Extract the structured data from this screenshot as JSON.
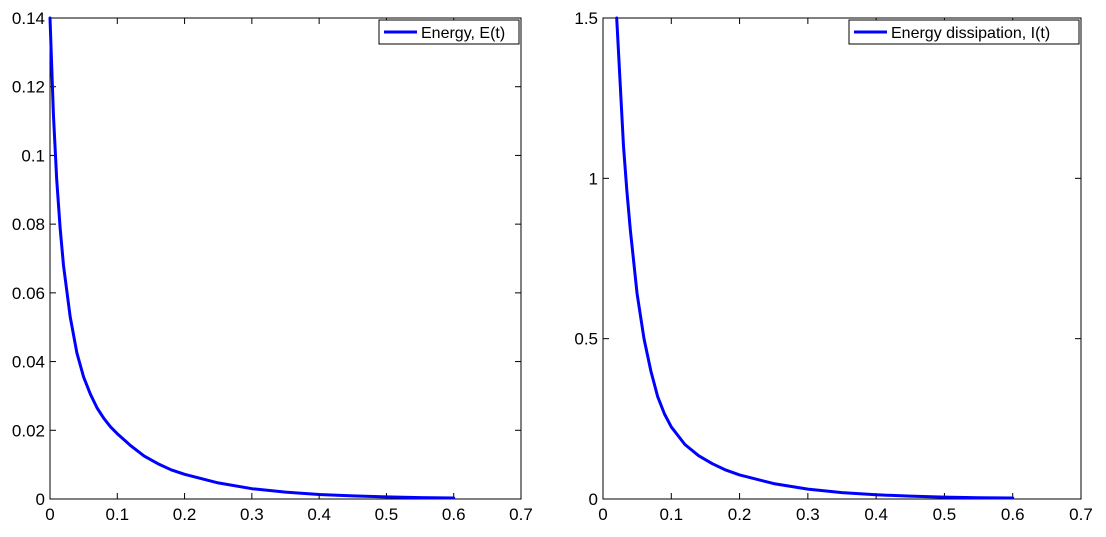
{
  "chart_data": [
    {
      "type": "line",
      "xlim": [
        0,
        0.7
      ],
      "ylim": [
        0,
        0.14
      ],
      "x_ticks": [
        "0",
        "0.1",
        "0.2",
        "0.3",
        "0.4",
        "0.5",
        "0.6",
        "0.7"
      ],
      "y_ticks": [
        "0",
        "0.02",
        "0.04",
        "0.06",
        "0.08",
        "0.1",
        "0.12",
        "0.14"
      ],
      "grid": false,
      "legend_position": "top-right",
      "series": [
        {
          "name": "Energy, E(t)",
          "color": "#0000ff",
          "x": [
            0,
            0.005,
            0.01,
            0.015,
            0.02,
            0.03,
            0.04,
            0.05,
            0.06,
            0.07,
            0.08,
            0.09,
            0.1,
            0.12,
            0.14,
            0.16,
            0.18,
            0.2,
            0.25,
            0.3,
            0.35,
            0.4,
            0.45,
            0.5,
            0.55,
            0.6
          ],
          "y": [
            0.14,
            0.112,
            0.093,
            0.079,
            0.068,
            0.053,
            0.0425,
            0.0355,
            0.0305,
            0.0265,
            0.0235,
            0.021,
            0.019,
            0.0155,
            0.0125,
            0.0103,
            0.0085,
            0.0072,
            0.0047,
            0.003,
            0.002,
            0.0013,
            0.0009,
            0.0006,
            0.0004,
            0.0003
          ]
        }
      ]
    },
    {
      "type": "line",
      "xlim": [
        0,
        0.7
      ],
      "ylim": [
        0,
        1.5
      ],
      "x_ticks": [
        "0",
        "0.1",
        "0.2",
        "0.3",
        "0.4",
        "0.5",
        "0.6",
        "0.7"
      ],
      "y_ticks": [
        "0",
        "0.5",
        "1",
        "1.5"
      ],
      "grid": false,
      "legend_position": "top-right",
      "series": [
        {
          "name": "Energy dissipation, I(t)",
          "color": "#0000ff",
          "x": [
            0.02,
            0.025,
            0.03,
            0.035,
            0.04,
            0.05,
            0.06,
            0.07,
            0.08,
            0.09,
            0.1,
            0.12,
            0.14,
            0.16,
            0.18,
            0.2,
            0.25,
            0.3,
            0.35,
            0.4,
            0.45,
            0.5,
            0.55,
            0.6
          ],
          "y": [
            1.5,
            1.3,
            1.1,
            0.96,
            0.84,
            0.64,
            0.5,
            0.4,
            0.32,
            0.265,
            0.225,
            0.17,
            0.135,
            0.11,
            0.09,
            0.075,
            0.048,
            0.031,
            0.02,
            0.013,
            0.009,
            0.006,
            0.004,
            0.003
          ]
        }
      ]
    }
  ]
}
